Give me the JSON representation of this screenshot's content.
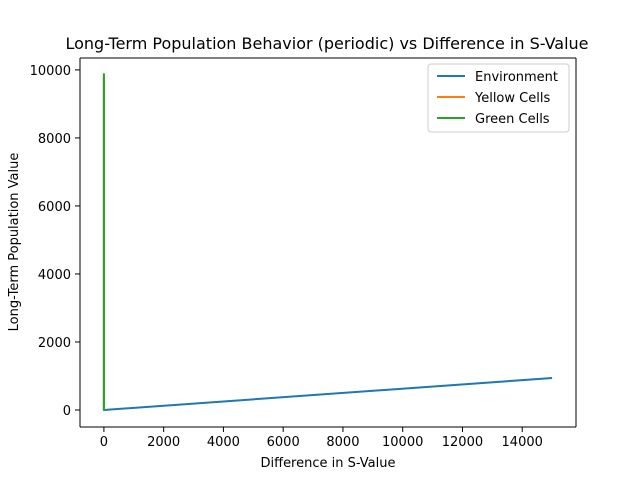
{
  "chart_data": {
    "type": "line",
    "title": "Long-Term Population Behavior (periodic) vs Difference in S-Value",
    "xlabel": "Difference in S-Value",
    "ylabel": "Long-Term Population Value",
    "xlim": [
      -800,
      15800
    ],
    "ylim": [
      -500,
      10350
    ],
    "xticks": [
      0,
      2000,
      4000,
      6000,
      8000,
      10000,
      12000,
      14000
    ],
    "yticks": [
      0,
      2000,
      4000,
      6000,
      8000,
      10000
    ],
    "legend_position": "top-right",
    "grid": false,
    "series": [
      {
        "name": "Environment",
        "color": "#1f77b4",
        "points": [
          [
            0,
            9800
          ],
          [
            0,
            0
          ],
          [
            15000,
            940
          ]
        ]
      },
      {
        "name": "Yellow Cells",
        "color": "#ff7f0e",
        "points": [
          [
            0,
            9850
          ],
          [
            0,
            5900
          ],
          [
            0,
            4800
          ],
          [
            0,
            0
          ]
        ]
      },
      {
        "name": "Green Cells",
        "color": "#2ca02c",
        "points": [
          [
            0,
            9900
          ],
          [
            0,
            5800
          ],
          [
            0,
            0
          ]
        ]
      }
    ]
  }
}
